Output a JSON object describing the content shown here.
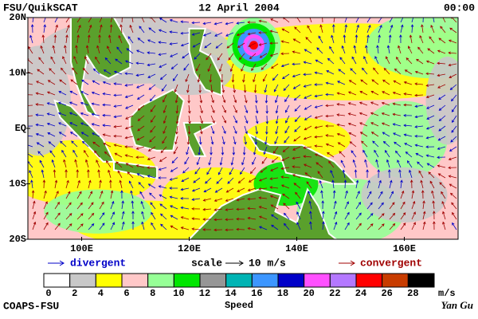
{
  "header": {
    "left": "FSU/QuikSCAT",
    "center": "12 April 2004",
    "right": "00:00"
  },
  "map": {
    "lonlim": [
      90,
      170
    ],
    "latlim": [
      -20,
      20
    ],
    "lonticks": [
      {
        "value": 100,
        "label": "100E"
      },
      {
        "value": 120,
        "label": "120E"
      },
      {
        "value": 140,
        "label": "140E"
      },
      {
        "value": 160,
        "label": "160E"
      }
    ],
    "latticks": [
      {
        "value": 20,
        "label": "20N"
      },
      {
        "value": 10,
        "label": "10N"
      },
      {
        "value": 0,
        "label": "EQ"
      },
      {
        "value": -10,
        "label": "10S"
      },
      {
        "value": -20,
        "label": "20S"
      }
    ],
    "divergent_color": "#0000c8",
    "convergent_color": "#a00000"
  },
  "legend": {
    "divergent": "divergent",
    "scale": "scale",
    "scale_value": "10 m/s",
    "convergent": "convergent"
  },
  "colorbar": {
    "ticks": [
      0,
      2,
      4,
      6,
      8,
      10,
      12,
      14,
      16,
      18,
      20,
      22,
      24,
      26,
      28
    ],
    "unit": "m/s",
    "label": "Speed",
    "colors": [
      "#ffffff",
      "#c8c8c8",
      "#ffff00",
      "#ffc8c8",
      "#96ff96",
      "#00e600",
      "#969696",
      "#00b4b4",
      "#3c96ff",
      "#0000c8",
      "#ff50ff",
      "#b478ff",
      "#ff0000",
      "#c83c00",
      "#000000"
    ]
  },
  "footer": {
    "left": "COAPS-FSU",
    "right": "Yan Gu"
  }
}
